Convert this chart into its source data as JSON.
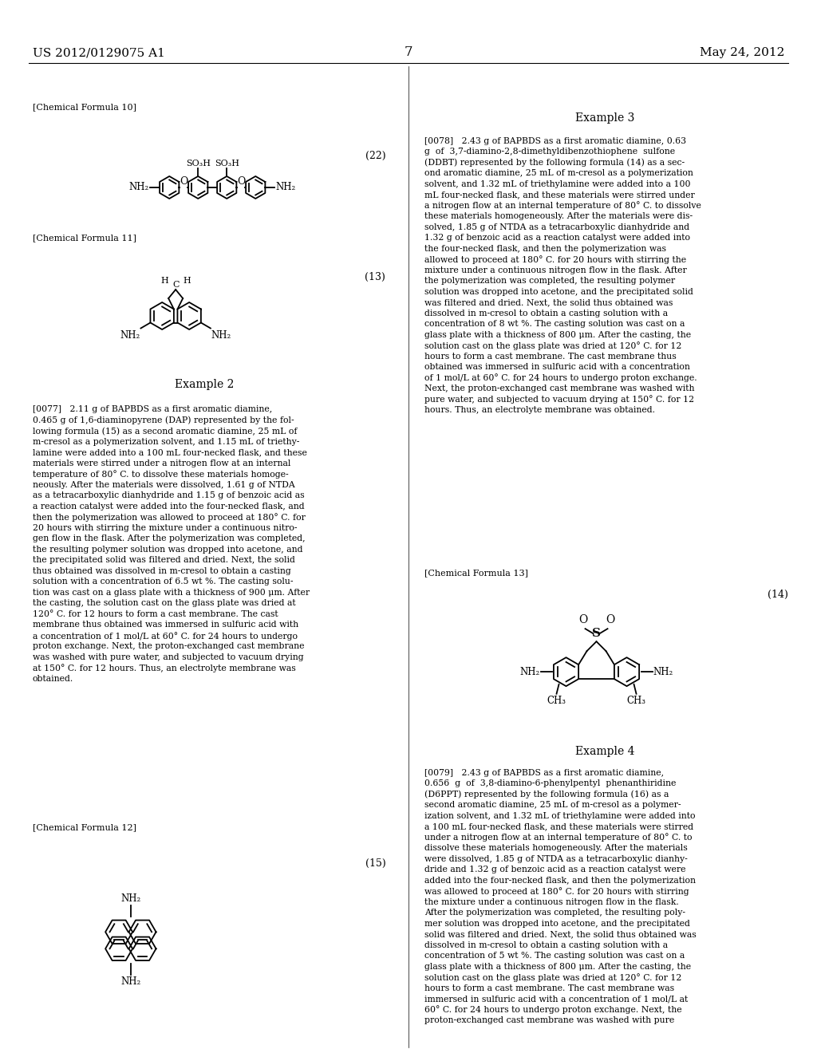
{
  "background_color": "#ffffff",
  "header_left": "US 2012/0129075 A1",
  "header_center": "7",
  "header_right": "May 24, 2012",
  "left_col_lines_ex2": [
    "[0077]   2.11 g of BAPBDS as a first aromatic diamine,",
    "0.465 g of 1,6-diaminopyrene (DAP) represented by the fol-",
    "lowing formula (15) as a second aromatic diamine, 25 mL of",
    "m-cresol as a polymerization solvent, and 1.15 mL of triethy-",
    "lamine were added into a 100 mL four-necked flask, and these",
    "materials were stirred under a nitrogen flow at an internal",
    "temperature of 80° C. to dissolve these materials homoge-",
    "neously. After the materials were dissolved, 1.61 g of NTDA",
    "as a tetracarboxylic dianhydride and 1.15 g of benzoic acid as",
    "a reaction catalyst were added into the four-necked flask, and",
    "then the polymerization was allowed to proceed at 180° C. for",
    "20 hours with stirring the mixture under a continuous nitro-",
    "gen flow in the flask. After the polymerization was completed,",
    "the resulting polymer solution was dropped into acetone, and",
    "the precipitated solid was filtered and dried. Next, the solid",
    "thus obtained was dissolved in m-cresol to obtain a casting",
    "solution with a concentration of 6.5 wt %. The casting solu-",
    "tion was cast on a glass plate with a thickness of 900 μm. After",
    "the casting, the solution cast on the glass plate was dried at",
    "120° C. for 12 hours to form a cast membrane. The cast",
    "membrane thus obtained was immersed in sulfuric acid with",
    "a concentration of 1 mol/L at 60° C. for 24 hours to undergo",
    "proton exchange. Next, the proton-exchanged cast membrane",
    "was washed with pure water, and subjected to vacuum drying",
    "at 150° C. for 12 hours. Thus, an electrolyte membrane was",
    "obtained."
  ],
  "right_col_lines_ex3": [
    "[0078]   2.43 g of BAPBDS as a first aromatic diamine, 0.63",
    "g  of  3,7-diamino-2,8-dimethyldibenzothiophene  sulfone",
    "(DDBT) represented by the following formula (14) as a sec-",
    "ond aromatic diamine, 25 mL of m-cresol as a polymerization",
    "solvent, and 1.32 mL of triethylamine were added into a 100",
    "mL four-necked flask, and these materials were stirred under",
    "a nitrogen flow at an internal temperature of 80° C. to dissolve",
    "these materials homogeneously. After the materials were dis-",
    "solved, 1.85 g of NTDA as a tetracarboxylic dianhydride and",
    "1.32 g of benzoic acid as a reaction catalyst were added into",
    "the four-necked flask, and then the polymerization was",
    "allowed to proceed at 180° C. for 20 hours with stirring the",
    "mixture under a continuous nitrogen flow in the flask. After",
    "the polymerization was completed, the resulting polymer",
    "solution was dropped into acetone, and the precipitated solid",
    "was filtered and dried. Next, the solid thus obtained was",
    "dissolved in m-cresol to obtain a casting solution with a",
    "concentration of 8 wt %. The casting solution was cast on a",
    "glass plate with a thickness of 800 μm. After the casting, the",
    "solution cast on the glass plate was dried at 120° C. for 12",
    "hours to form a cast membrane. The cast membrane thus",
    "obtained was immersed in sulfuric acid with a concentration",
    "of 1 mol/L at 60° C. for 24 hours to undergo proton exchange.",
    "Next, the proton-exchanged cast membrane was washed with",
    "pure water, and subjected to vacuum drying at 150° C. for 12",
    "hours. Thus, an electrolyte membrane was obtained."
  ],
  "right_col_lines_ex4": [
    "[0079]   2.43 g of BAPBDS as a first aromatic diamine,",
    "0.656  g  of  3,8-diamino-6-phenylpentyl  phenanthiridine",
    "(D6PPT) represented by the following formula (16) as a",
    "second aromatic diamine, 25 mL of m-cresol as a polymer-",
    "ization solvent, and 1.32 mL of triethylamine were added into",
    "a 100 mL four-necked flask, and these materials were stirred",
    "under a nitrogen flow at an internal temperature of 80° C. to",
    "dissolve these materials homogeneously. After the materials",
    "were dissolved, 1.85 g of NTDA as a tetracarboxylic dianhy-",
    "dride and 1.32 g of benzoic acid as a reaction catalyst were",
    "added into the four-necked flask, and then the polymerization",
    "was allowed to proceed at 180° C. for 20 hours with stirring",
    "the mixture under a continuous nitrogen flow in the flask.",
    "After the polymerization was completed, the resulting poly-",
    "mer solution was dropped into acetone, and the precipitated",
    "solid was filtered and dried. Next, the solid thus obtained was",
    "dissolved in m-cresol to obtain a casting solution with a",
    "concentration of 5 wt %. The casting solution was cast on a",
    "glass plate with a thickness of 800 μm. After the casting, the",
    "solution cast on the glass plate was dried at 120° C. for 12",
    "hours to form a cast membrane. The cast membrane was",
    "immersed in sulfuric acid with a concentration of 1 mol/L at",
    "60° C. for 24 hours to undergo proton exchange. Next, the",
    "proton-exchanged cast membrane was washed with pure"
  ]
}
